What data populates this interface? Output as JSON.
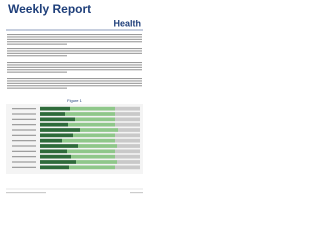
{
  "header": {
    "title": "Weekly Report",
    "logo": "Health"
  },
  "figure": {
    "type": "bar",
    "stacked": true,
    "orientation": "horizontal",
    "title": "Figure 1",
    "categories": [
      null,
      null,
      null,
      null,
      null,
      null,
      null,
      null,
      null,
      null,
      null,
      null
    ],
    "series": [
      {
        "name": null,
        "color": "#2e6b3a",
        "values": [
          30,
          25,
          35,
          28,
          40,
          33,
          22,
          38,
          27,
          31,
          36,
          29
        ]
      },
      {
        "name": null,
        "color": "#8fc78a",
        "values": [
          45,
          50,
          40,
          47,
          38,
          42,
          53,
          39,
          48,
          44,
          41,
          46
        ]
      },
      {
        "name": null,
        "color": "#c9c9c9",
        "values": [
          25,
          25,
          25,
          25,
          22,
          25,
          25,
          23,
          25,
          25,
          23,
          25
        ]
      }
    ],
    "xlim": [
      0,
      100
    ]
  }
}
